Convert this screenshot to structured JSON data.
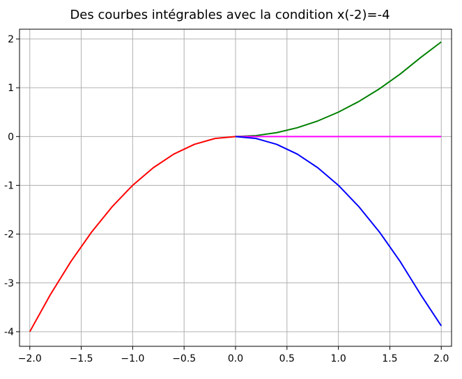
{
  "chart_data": {
    "type": "line",
    "title": "Des courbes intégrables avec la condition x(-2)=-4",
    "xlabel": "",
    "ylabel": "",
    "xlim": [
      -2.1,
      2.1
    ],
    "ylim": [
      -4.3,
      2.2
    ],
    "x_ticks": [
      -2.0,
      -1.5,
      -1.0,
      -0.5,
      0.0,
      0.5,
      1.0,
      1.5,
      2.0
    ],
    "x_tick_labels": [
      "−2.0",
      "−1.5",
      "−1.0",
      "−0.5",
      "0.0",
      "0.5",
      "1.0",
      "1.5",
      "2.0"
    ],
    "y_ticks": [
      -4,
      -3,
      -2,
      -1,
      0,
      1,
      2
    ],
    "y_tick_labels": [
      "-4",
      "-3",
      "-2",
      "-1",
      "0",
      "1",
      "2"
    ],
    "grid": true,
    "series": [
      {
        "color": "#ff0000",
        "x": [
          -2.0,
          -1.8,
          -1.6,
          -1.4,
          -1.2,
          -1.0,
          -0.8,
          -0.6,
          -0.4,
          -0.2,
          0.0
        ],
        "y": [
          -4.0,
          -3.24,
          -2.56,
          -1.96,
          -1.44,
          -1.0,
          -0.64,
          -0.36,
          -0.16,
          -0.04,
          0.0
        ]
      },
      {
        "color": "#008000",
        "x": [
          0.0,
          0.2,
          0.4,
          0.6,
          0.8,
          1.0,
          1.2,
          1.4,
          1.6,
          1.8,
          2.0
        ],
        "y": [
          0.0,
          0.02,
          0.08,
          0.18,
          0.32,
          0.5,
          0.72,
          0.98,
          1.28,
          1.62,
          1.94
        ]
      },
      {
        "color": "#ff00ff",
        "x": [
          0.0,
          2.0
        ],
        "y": [
          0.0,
          0.0
        ]
      },
      {
        "color": "#0000ff",
        "x": [
          0.0,
          0.2,
          0.4,
          0.6,
          0.8,
          1.0,
          1.2,
          1.4,
          1.6,
          1.8,
          2.0
        ],
        "y": [
          0.0,
          -0.04,
          -0.16,
          -0.36,
          -0.64,
          -1.0,
          -1.44,
          -1.96,
          -2.56,
          -3.24,
          -3.88
        ]
      }
    ]
  }
}
